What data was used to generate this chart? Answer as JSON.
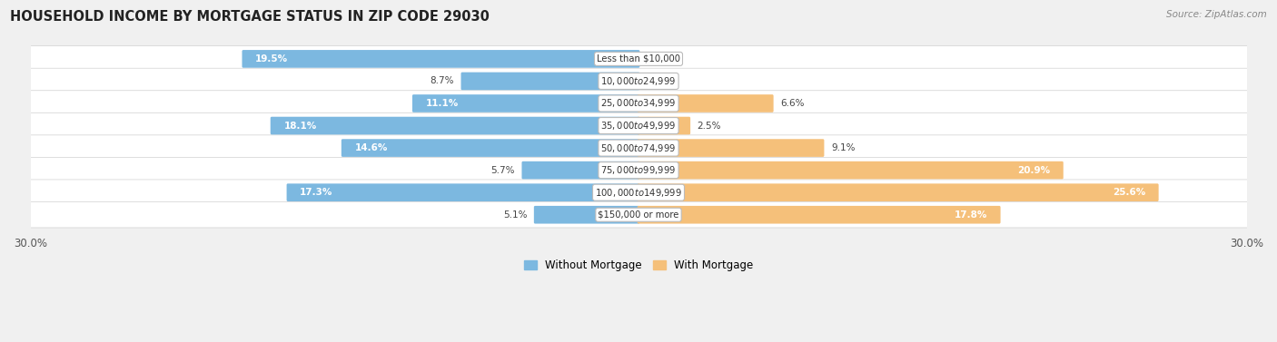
{
  "title": "HOUSEHOLD INCOME BY MORTGAGE STATUS IN ZIP CODE 29030",
  "source": "Source: ZipAtlas.com",
  "categories": [
    "Less than $10,000",
    "$10,000 to $24,999",
    "$25,000 to $34,999",
    "$35,000 to $49,999",
    "$50,000 to $74,999",
    "$75,000 to $99,999",
    "$100,000 to $149,999",
    "$150,000 or more"
  ],
  "without_mortgage": [
    19.5,
    8.7,
    11.1,
    18.1,
    14.6,
    5.7,
    17.3,
    5.1
  ],
  "with_mortgage": [
    0.0,
    0.0,
    6.6,
    2.5,
    9.1,
    20.9,
    25.6,
    17.8
  ],
  "color_without": "#7cb8e0",
  "color_with": "#f5c07a",
  "background_row": "#ffffff",
  "background_fig": "#f0f0f0",
  "xlim": 30.0,
  "legend_label_without": "Without Mortgage",
  "legend_label_with": "With Mortgage"
}
